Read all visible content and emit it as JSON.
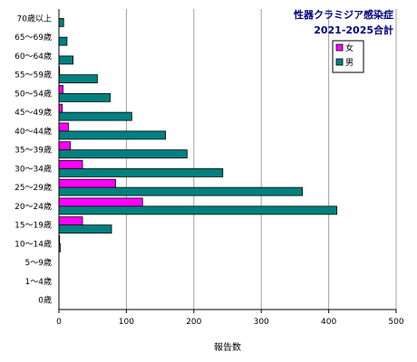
{
  "chart_data": {
    "type": "bar",
    "orientation": "horizontal",
    "title": "性器クラミジア感染症",
    "subtitle": "2021-2025合計",
    "xlabel": "報告数",
    "ylabel": "",
    "xlim": [
      0,
      500
    ],
    "x_ticks": [
      0,
      100,
      200,
      300,
      400,
      500
    ],
    "grid": true,
    "legend_position": "top-right",
    "categories": [
      "70歳以上",
      "65～69歳",
      "60～64歳",
      "55～59歳",
      "50～54歳",
      "45～49歳",
      "40～44歳",
      "35～39歳",
      "30～34歳",
      "25～29歳",
      "20～24歳",
      "15～19歳",
      "10～14歳",
      "5～9歳",
      "1～4歳",
      "0歳"
    ],
    "series": [
      {
        "name": "女",
        "color": "#ff00ff",
        "values": [
          0,
          0,
          0,
          1,
          6,
          5,
          14,
          17,
          35,
          84,
          124,
          35,
          1,
          0,
          0,
          0
        ]
      },
      {
        "name": "男",
        "color": "#008080",
        "values": [
          7,
          12,
          21,
          57,
          76,
          108,
          158,
          190,
          243,
          361,
          412,
          78,
          2,
          0,
          0,
          0
        ]
      }
    ]
  }
}
